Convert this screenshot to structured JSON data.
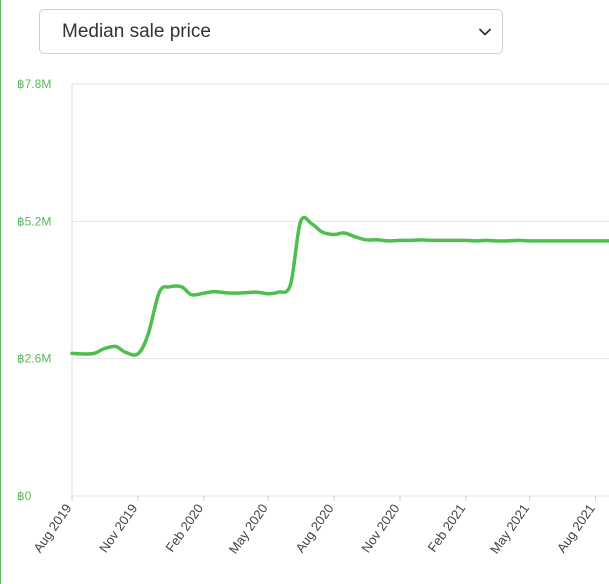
{
  "metric_select": {
    "selected": "Median sale price"
  },
  "colors": {
    "line": "#4dbf4d",
    "axis_text": "#5cb85c",
    "grid": "#e3e3e3",
    "border": "#5cb85c"
  },
  "icons": {
    "select_arrow": "chevron-down-icon"
  },
  "chart_data": {
    "type": "line",
    "title": "",
    "xlabel": "",
    "ylabel": "",
    "currency_symbol": "฿",
    "ylim": [
      0,
      7800000
    ],
    "yticks": [
      0,
      2600000,
      5200000,
      7800000
    ],
    "ytick_labels": [
      "฿0",
      "฿2.6M",
      "฿5.2M",
      "฿7.8M"
    ],
    "xtick_labels": [
      "Aug 2019",
      "Nov 2019",
      "Feb 2020",
      "May 2020",
      "Aug 2020",
      "Nov 2020",
      "Feb 2021",
      "May 2021",
      "Aug 2021"
    ],
    "grid": true,
    "series": [
      {
        "x": [
          "2019-08-01",
          "2019-08-15",
          "2019-09-01",
          "2019-09-15",
          "2019-10-01",
          "2019-10-15",
          "2019-11-01",
          "2019-11-15",
          "2019-12-01",
          "2019-12-15",
          "2020-01-01",
          "2020-01-15",
          "2020-02-01",
          "2020-02-15",
          "2020-03-01",
          "2020-03-15",
          "2020-04-01",
          "2020-04-15",
          "2020-05-01",
          "2020-05-15",
          "2020-06-01",
          "2020-06-15",
          "2020-07-01",
          "2020-07-15",
          "2020-08-01",
          "2020-08-15",
          "2020-09-01",
          "2020-09-15",
          "2020-10-01",
          "2020-10-15",
          "2020-11-01",
          "2020-11-15",
          "2020-12-01",
          "2020-12-15",
          "2021-01-01",
          "2021-01-15",
          "2021-02-01",
          "2021-02-15",
          "2021-03-01",
          "2021-03-15",
          "2021-04-01",
          "2021-04-15",
          "2021-05-01",
          "2021-05-15",
          "2021-06-01",
          "2021-06-15",
          "2021-07-01",
          "2021-07-15",
          "2021-08-01",
          "2021-08-15",
          "2021-09-01"
        ],
        "values": [
          2700000,
          2690000,
          2700000,
          2790000,
          2830000,
          2720000,
          2690000,
          3050000,
          3860000,
          3960000,
          3960000,
          3810000,
          3840000,
          3870000,
          3850000,
          3840000,
          3850000,
          3860000,
          3830000,
          3860000,
          4000000,
          5190000,
          5150000,
          5000000,
          4950000,
          4980000,
          4900000,
          4850000,
          4850000,
          4830000,
          4840000,
          4840000,
          4850000,
          4840000,
          4840000,
          4840000,
          4840000,
          4830000,
          4840000,
          4830000,
          4830000,
          4840000,
          4830000,
          4830000,
          4830000,
          4830000,
          4830000,
          4830000,
          4830000,
          4830000,
          4830000
        ]
      }
    ]
  }
}
